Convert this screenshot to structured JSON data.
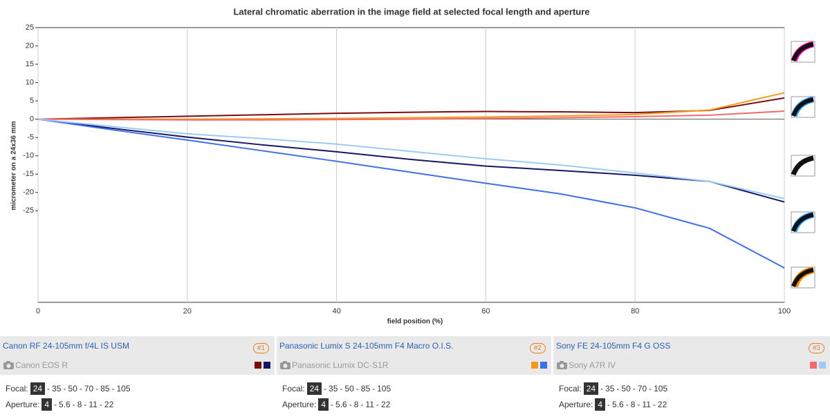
{
  "chart_data": {
    "type": "line",
    "title": "Lateral chromatic aberration in the image field at selected focal length and aperture",
    "x_label": "field position (%)",
    "y_label": "micrometer on a 24x36 mm",
    "x": [
      0,
      10,
      20,
      30,
      40,
      50,
      60,
      70,
      80,
      90,
      100
    ],
    "xlim": [
      0,
      100
    ],
    "xticks": [
      0,
      20,
      40,
      60,
      80,
      100
    ],
    "ylim": [
      -50,
      25
    ],
    "yticks": [
      25,
      20,
      15,
      10,
      5,
      0,
      -5,
      -10,
      -15,
      -20,
      -25
    ],
    "grid": "x",
    "series": [
      {
        "color": "#7a0c0c",
        "values": [
          0,
          0.4,
          0.8,
          1.2,
          1.6,
          1.9,
          2.1,
          2.0,
          1.8,
          2.4,
          5.8
        ]
      },
      {
        "color": "#151565",
        "values": [
          0,
          -2.5,
          -4.9,
          -7,
          -8.9,
          -11,
          -12.8,
          -14,
          -15.3,
          -17,
          -22.6
        ]
      },
      {
        "color": "#f39a1e",
        "values": [
          0,
          0,
          0,
          0.1,
          0.2,
          0.4,
          0.6,
          0.9,
          1.3,
          2.5,
          7.2
        ]
      },
      {
        "color": "#3d6fe6",
        "values": [
          0,
          -2.9,
          -5.7,
          -8.6,
          -11.5,
          -14.5,
          -17.5,
          -20.4,
          -24.2,
          -29.8,
          -40.6
        ]
      },
      {
        "color": "#f26a6a",
        "values": [
          0,
          -0.1,
          -0.2,
          -0.2,
          -0.1,
          0,
          0.2,
          0.4,
          0.7,
          1.1,
          2.2
        ]
      },
      {
        "color": "#9ccaf2",
        "values": [
          0,
          -2,
          -4,
          -5.3,
          -6.8,
          -8.8,
          -10.8,
          -12.5,
          -14.7,
          -17,
          -21.7
        ]
      }
    ]
  },
  "labels": {
    "focal": "Focal:",
    "aperture": "Aperture:",
    "separator": "-"
  },
  "lenses": [
    {
      "lens": "Canon RF 24-105mm f/4L IS USM",
      "badge": "#1",
      "camera": "Canon EOS R",
      "focal": [
        "24",
        "35",
        "50",
        "70",
        "85",
        "105"
      ],
      "aperture": [
        "4",
        "5.6",
        "8",
        "11",
        "22"
      ]
    },
    {
      "lens": "Panasonic Lumix S 24-105mm F4 Macro O.I.S.",
      "badge": "#2",
      "camera": "Panasonic Lumix DC-S1R",
      "focal": [
        "24",
        "35",
        "50",
        "85",
        "105"
      ],
      "aperture": [
        "4",
        "5.6",
        "8",
        "11",
        "22"
      ]
    },
    {
      "lens": "Sony FE 24-105mm F4 G OSS",
      "badge": "#3",
      "camera": "Sony A7R IV",
      "focal": [
        "24",
        "35",
        "50",
        "70",
        "105"
      ],
      "aperture": [
        "4",
        "5.6",
        "8",
        "11",
        "22"
      ]
    }
  ]
}
